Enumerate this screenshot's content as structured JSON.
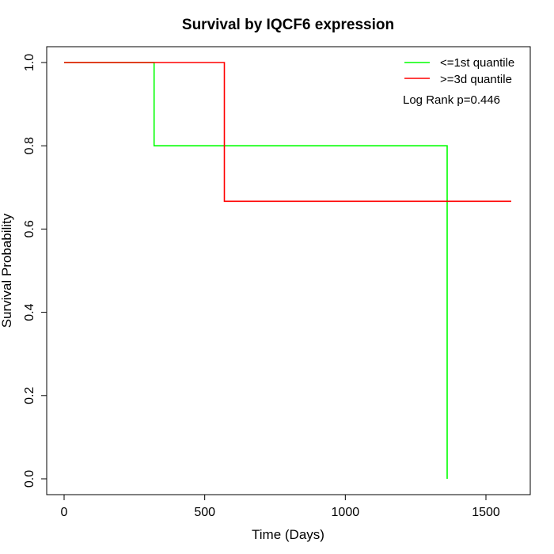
{
  "chart_data": {
    "type": "line",
    "title": "Survival by IQCF6 expression",
    "xlabel": "Time (Days)",
    "ylabel": "Survival Probability",
    "xlim": [
      0,
      1660
    ],
    "ylim": [
      0,
      1.0
    ],
    "x_ticks": [
      0,
      500,
      1000,
      1500
    ],
    "y_ticks": [
      0.0,
      0.2,
      0.4,
      0.6,
      0.8,
      1.0
    ],
    "x_tick_labels": [
      "0",
      "500",
      "1000",
      "1500"
    ],
    "y_tick_labels": [
      "0.0",
      "0.2",
      "0.4",
      "0.6",
      "0.8",
      "1.0"
    ],
    "grid": false,
    "legend_position": "top-right",
    "series": [
      {
        "name": "<=1st quantile",
        "color": "#00ff00",
        "x": [
          0,
          320,
          320,
          1362,
          1362
        ],
        "y": [
          1.0,
          1.0,
          0.8,
          0.8,
          0.0
        ]
      },
      {
        "name": ">=3d quantile",
        "color": "#ff0000",
        "x": [
          0,
          570,
          570,
          1590
        ],
        "y": [
          1.0,
          1.0,
          0.6667,
          0.6667
        ]
      }
    ],
    "annotation": "Log Rank p=0.446"
  }
}
